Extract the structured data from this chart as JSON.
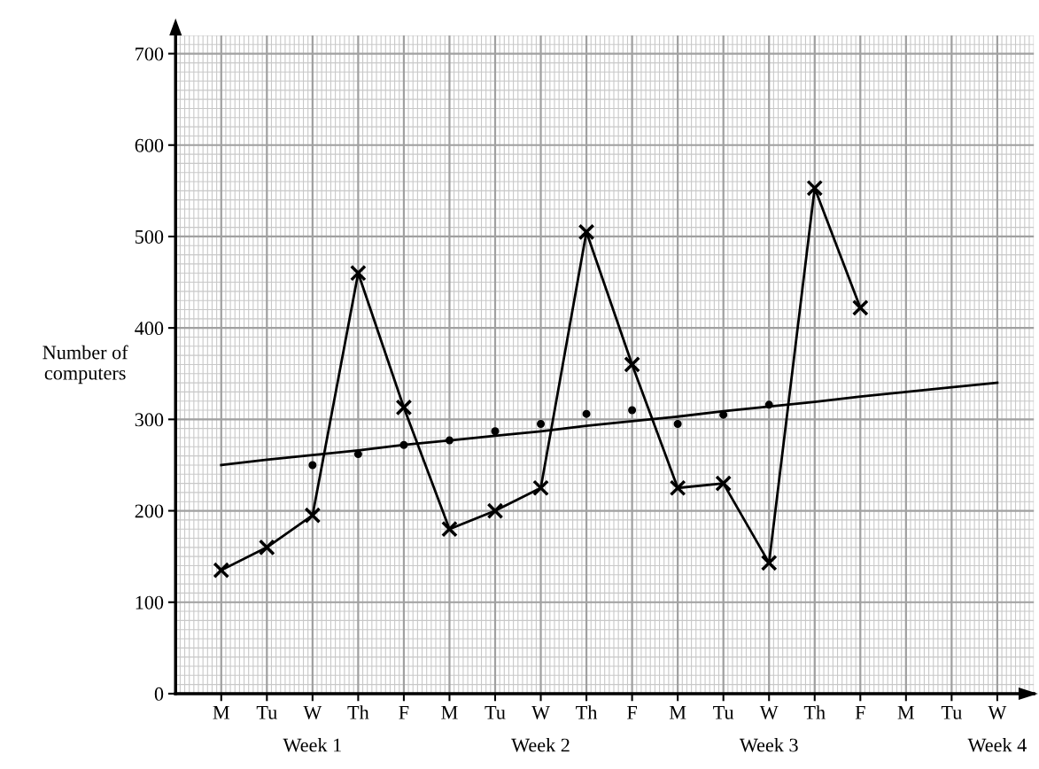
{
  "chart_data": {
    "type": "line",
    "ylabel": "Number of\ncomputers",
    "categories": [
      "M",
      "Tu",
      "W",
      "Th",
      "F",
      "M",
      "Tu",
      "W",
      "Th",
      "F",
      "M",
      "Tu",
      "W",
      "Th",
      "F",
      "M",
      "Tu",
      "W"
    ],
    "annotations": [
      "Week 1",
      "Week 2",
      "Week 3",
      "Week 4"
    ],
    "ylim": [
      0,
      720
    ],
    "yticks": [
      0,
      100,
      200,
      300,
      400,
      500,
      600,
      700
    ],
    "grid": true,
    "series": [
      {
        "color": "#000000",
        "marker": "cross",
        "values": [
          135,
          160,
          195,
          460,
          313,
          180,
          200,
          225,
          505,
          360,
          225,
          230,
          143,
          553,
          422,
          null,
          null,
          null
        ]
      },
      {
        "type": "scatter",
        "color": "#000000",
        "marker": "circle",
        "values": [
          null,
          null,
          250,
          262,
          272,
          277,
          287,
          295,
          306,
          310,
          295,
          305,
          316,
          null,
          null,
          null,
          null,
          null
        ]
      },
      {
        "type": "line",
        "color": "#000000",
        "marker": "none",
        "values": [
          250,
          256,
          261,
          266,
          272,
          277,
          282,
          287,
          293,
          298,
          303,
          309,
          314,
          319,
          325,
          330,
          335,
          340
        ]
      }
    ]
  }
}
